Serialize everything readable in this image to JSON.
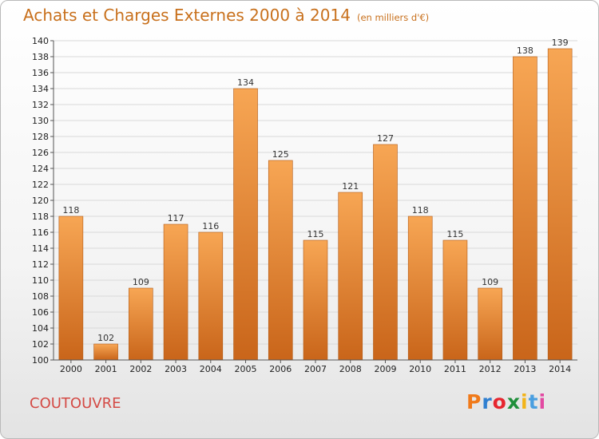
{
  "header": {
    "title": "Achats et Charges Externes 2000 à 2014",
    "unit": "(en milliers d'€)"
  },
  "location": "COUTOUVRE",
  "brand": {
    "logo_text": "Proxiti",
    "colors": [
      "#f07a1a",
      "#2f7fd0",
      "#e6262f",
      "#1f8f3a",
      "#f2b41a",
      "#4a9fe0",
      "#e24aa2"
    ]
  },
  "chart_data": {
    "type": "bar",
    "title": "Achats et Charges Externes 2000 à 2014",
    "subtitle": "(en milliers d'€)",
    "xlabel": "",
    "ylabel": "",
    "categories": [
      "2000",
      "2001",
      "2002",
      "2003",
      "2004",
      "2005",
      "2006",
      "2007",
      "2008",
      "2009",
      "2010",
      "2011",
      "2012",
      "2013",
      "2014"
    ],
    "values": [
      118,
      102,
      109,
      117,
      116,
      134,
      125,
      115,
      121,
      127,
      118,
      115,
      109,
      138,
      139
    ],
    "ylim": [
      100,
      140
    ],
    "ytick_step": 2,
    "grid": true,
    "legend": "none",
    "bar_color_top": "#f7a654",
    "bar_color_bottom": "#c9651a"
  }
}
